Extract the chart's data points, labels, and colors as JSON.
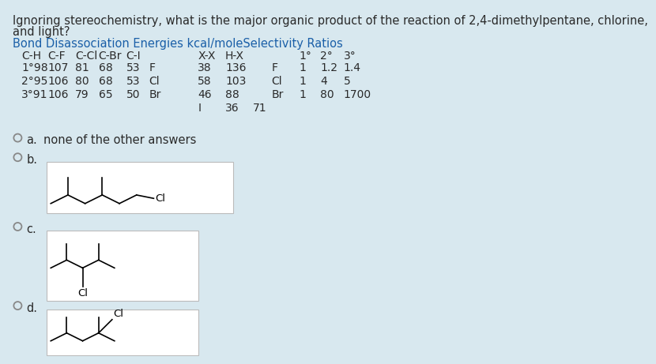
{
  "bg_color": "#d8e8ef",
  "question_line1": "Ignoring stereochemistry, what is the major organic product of the reaction of 2,4-dimethylpentane, chlorine,",
  "question_line2": "and light?",
  "table_title": "Bond Disassociation Energies kcal/moleSelectivity Ratios",
  "text_color": "#2a2a2a",
  "blue_color": "#1a5fa8",
  "box_bg": "#ffffff",
  "box_edge": "#bbbbbb",
  "answer_a": "none of the other answers"
}
